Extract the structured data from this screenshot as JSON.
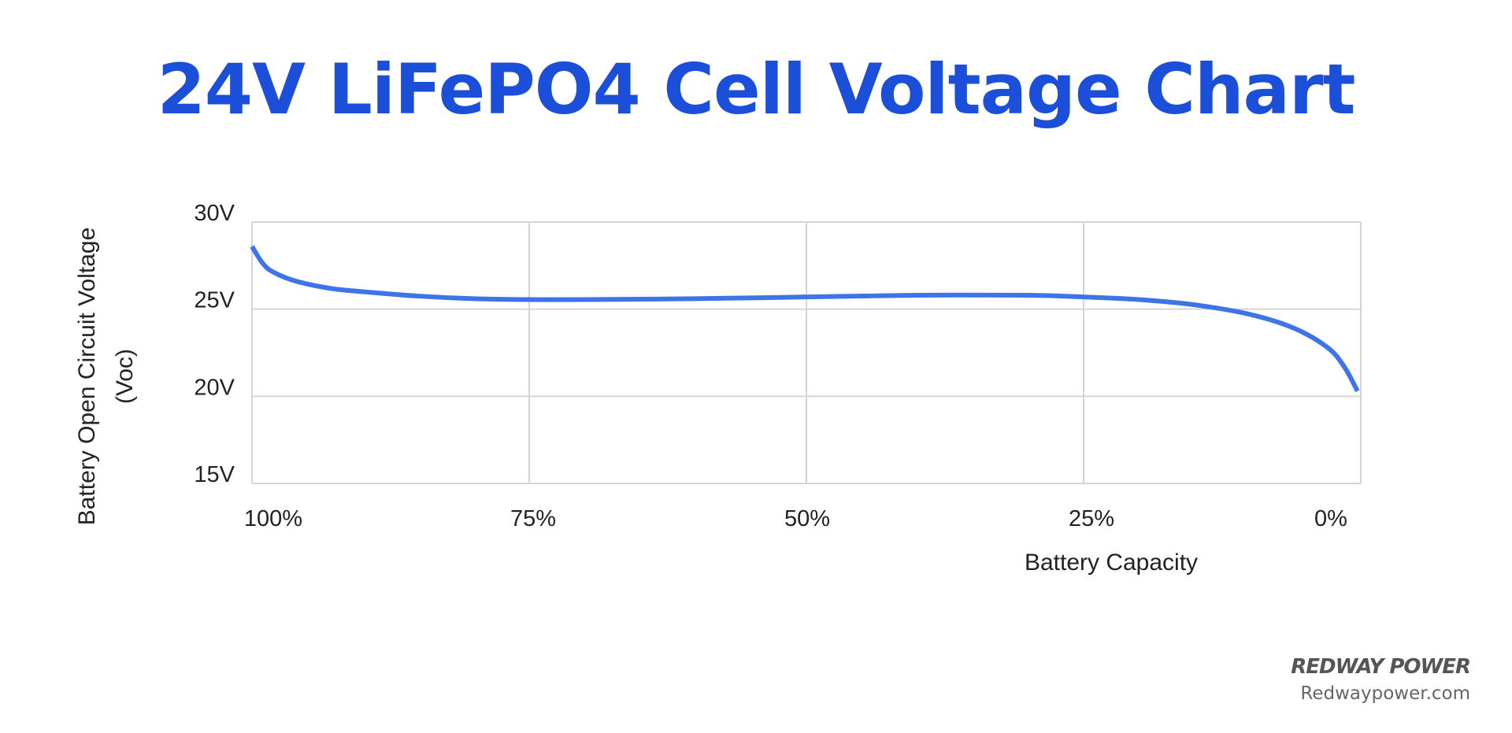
{
  "chart_data": {
    "type": "line",
    "title": "24V LiFePO4 Cell Voltage Chart",
    "xlabel": "Battery Capacity",
    "ylabel": [
      "Battery Open Circuit Voltage",
      "(Voc)"
    ],
    "x_ticks": [
      "100%",
      "75%",
      "50%",
      "25%",
      "0%"
    ],
    "x_tick_values": [
      100,
      75,
      50,
      25,
      0
    ],
    "y_ticks": [
      "30V",
      "25V",
      "20V",
      "15V"
    ],
    "y_tick_values": [
      30,
      25,
      20,
      15
    ],
    "xlim": [
      100,
      0
    ],
    "ylim": [
      15,
      30
    ],
    "grid": true,
    "line_color": "#3f74e8",
    "x": [
      100,
      99,
      98,
      96,
      93,
      90,
      85,
      80,
      75,
      70,
      60,
      50,
      40,
      30,
      25,
      20,
      15,
      10,
      6,
      3,
      1.5,
      0.3
    ],
    "y": [
      28.6,
      27.6,
      27.1,
      26.6,
      26.2,
      26.0,
      25.75,
      25.6,
      25.55,
      25.55,
      25.6,
      25.7,
      25.8,
      25.8,
      25.7,
      25.55,
      25.25,
      24.7,
      23.9,
      22.8,
      21.7,
      20.3
    ]
  },
  "branding": {
    "logo": "REDWAY POWER",
    "website": "Redwaypower.com"
  },
  "colors": {
    "title": "#1b4fd9",
    "grid": "#d4d4d4"
  }
}
